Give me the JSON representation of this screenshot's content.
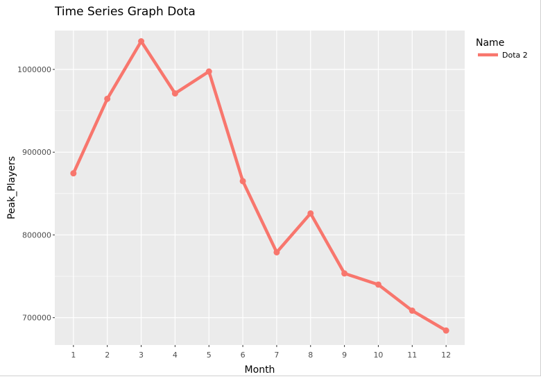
{
  "chart_data": {
    "type": "line",
    "title": "Time Series Graph Dota",
    "xlabel": "Month",
    "ylabel": "Peak_Players",
    "x": [
      1,
      2,
      3,
      4,
      5,
      6,
      7,
      8,
      9,
      10,
      11,
      12
    ],
    "x_ticks": [
      "1",
      "2",
      "3",
      "4",
      "5",
      "6",
      "7",
      "8",
      "9",
      "10",
      "11",
      "12"
    ],
    "y_ticks": [
      700000,
      800000,
      900000,
      1000000
    ],
    "y_tick_labels": [
      "700000",
      "800000",
      "900000",
      "1000000"
    ],
    "ylim": [
      667000,
      1047000
    ],
    "xlim": [
      0.45,
      12.55
    ],
    "grid": true,
    "legend": {
      "title": "Name",
      "position": "right"
    },
    "series": [
      {
        "name": "Dota 2",
        "color": "#F8766D",
        "values": [
          874500,
          964500,
          1034000,
          971000,
          997500,
          865000,
          779000,
          826000,
          753500,
          740000,
          708500,
          684500
        ]
      }
    ]
  }
}
